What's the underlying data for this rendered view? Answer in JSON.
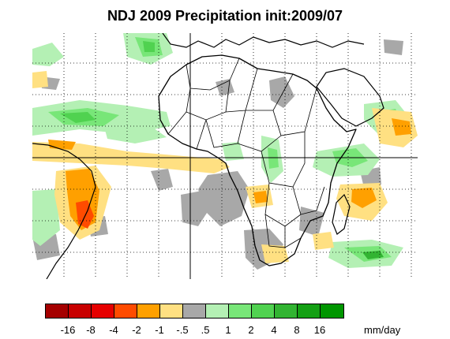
{
  "title": "NDJ 2009 Precipitation init:2009/07",
  "colorbar": {
    "colors": [
      "#a50000",
      "#c80000",
      "#e60000",
      "#ff4b00",
      "#ffa000",
      "#ffe082",
      "#a8a8a8",
      "#b4f0b4",
      "#78e678",
      "#50d250",
      "#32b432",
      "#14a014",
      "#009600"
    ],
    "tick_labels": [
      "-16",
      "-8",
      "-4",
      "-2",
      "-1",
      "-.5",
      ".5",
      "1",
      "2",
      "4",
      "8",
      "16"
    ],
    "unit": "mm/day"
  },
  "map": {
    "region": "Africa and Atlantic/Indian Ocean",
    "features": [
      "coastlines",
      "country-borders",
      "lat-lon-gridlines",
      "equator-line",
      "prime-meridian-line"
    ]
  }
}
